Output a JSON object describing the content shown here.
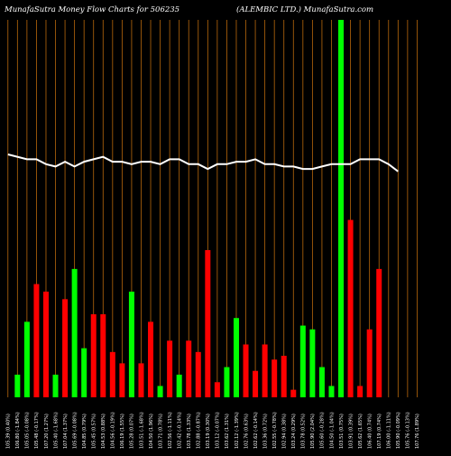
{
  "header": {
    "left_title": "MunafaSutra  Money Flow  Charts for 506235",
    "right_title": "(ALEMBIC LTD.) MunafaSutra.com"
  },
  "colors": {
    "background": "#000000",
    "grid": "#b8680c",
    "up": "#00ff00",
    "down": "#ff0000",
    "line": "#ffffff"
  },
  "chart_data": {
    "type": "bar",
    "title": "MunafaSutra  Money Flow  Charts for 506235",
    "subtitle": "(ALEMBIC LTD.) MunafaSutra.com",
    "grid": true,
    "categories": [
      "105.39 (0.40%)",
      "106.80 (-1.84%)",
      "105.05 (-0.08%)",
      "105.48 (-0.17%)",
      "107.20 (1.27%)",
      "105.40 (-1.68%)",
      "107.04 (1.37%)",
      "105.69 (-0.08%)",
      "104.85 (0.79%)",
      "105.45 (0.57%)",
      "104.53 (0.88%)",
      "104.56 (-0.19%)",
      "106.19 (1.55%)",
      "105.28 (0.07%)",
      "103.51 (-1.68%)",
      "104.50 (1.96%)",
      "103.71 (0.78%)",
      "102.56 (-1.11%)",
      "102.42 (-0.14%)",
      "103.78 (1.33%)",
      "102.88 (-0.87%)",
      "103.19 (0.30%)",
      "103.12 (-0.07%)",
      "103.62 (1.31%)",
      "102.12 (-1.39%)",
      "102.76 (0.63%)",
      "102.62 (-0.14%)",
      "103.36 (0.72%)",
      "102.55 (-0.78%)",
      "102.94 (0.38%)",
      "103.24 (0.29%)",
      "103.78 (0.52%)",
      "105.90 (2.04%)",
      "105.60 (-0.28%)",
      "104.50 (-1.04%)",
      "103.51 (0.75%)",
      "103.91 (0.39%)",
      "105.62 (1.65%)",
      "106.40 (0.74%)",
      "107.19 (0.74%)",
      "106.00 (-1.11%)",
      "105.90 (-0.09%)",
      "105.76 (-0.13%)",
      "107.76 (1.89%)"
    ],
    "series": [
      {
        "values": [
          0,
          6,
          20,
          30,
          28,
          6,
          26,
          34,
          13,
          22,
          22,
          12,
          9,
          28,
          9,
          20,
          3,
          15,
          6,
          15,
          12,
          39,
          4,
          8,
          21,
          14,
          7,
          14,
          10,
          11,
          2,
          19,
          18,
          8,
          3,
          100,
          47,
          3,
          18,
          34,
          0,
          0,
          0,
          0
        ],
        "directions": [
          "up",
          "up",
          "up",
          "down",
          "down",
          "up",
          "down",
          "up",
          "up",
          "down",
          "down",
          "down",
          "down",
          "up",
          "down",
          "down",
          "up",
          "down",
          "up",
          "down",
          "down",
          "down",
          "down",
          "up",
          "up",
          "down",
          "down",
          "down",
          "down",
          "down",
          "down",
          "up",
          "up",
          "up",
          "up",
          "up",
          "down",
          "down",
          "down",
          "down",
          "up",
          "up",
          "up",
          "up"
        ]
      },
      {
        "values": [
          100,
          0,
          98,
          98,
          96,
          95,
          97,
          95,
          97,
          98,
          99,
          97,
          97,
          96,
          97,
          97,
          96,
          98,
          98,
          96,
          96,
          94,
          96,
          96,
          97,
          97,
          98,
          96,
          96,
          95,
          95,
          94,
          94,
          95,
          96,
          96,
          96,
          98,
          98,
          98,
          96,
          93,
          0,
          0
        ]
      }
    ]
  }
}
